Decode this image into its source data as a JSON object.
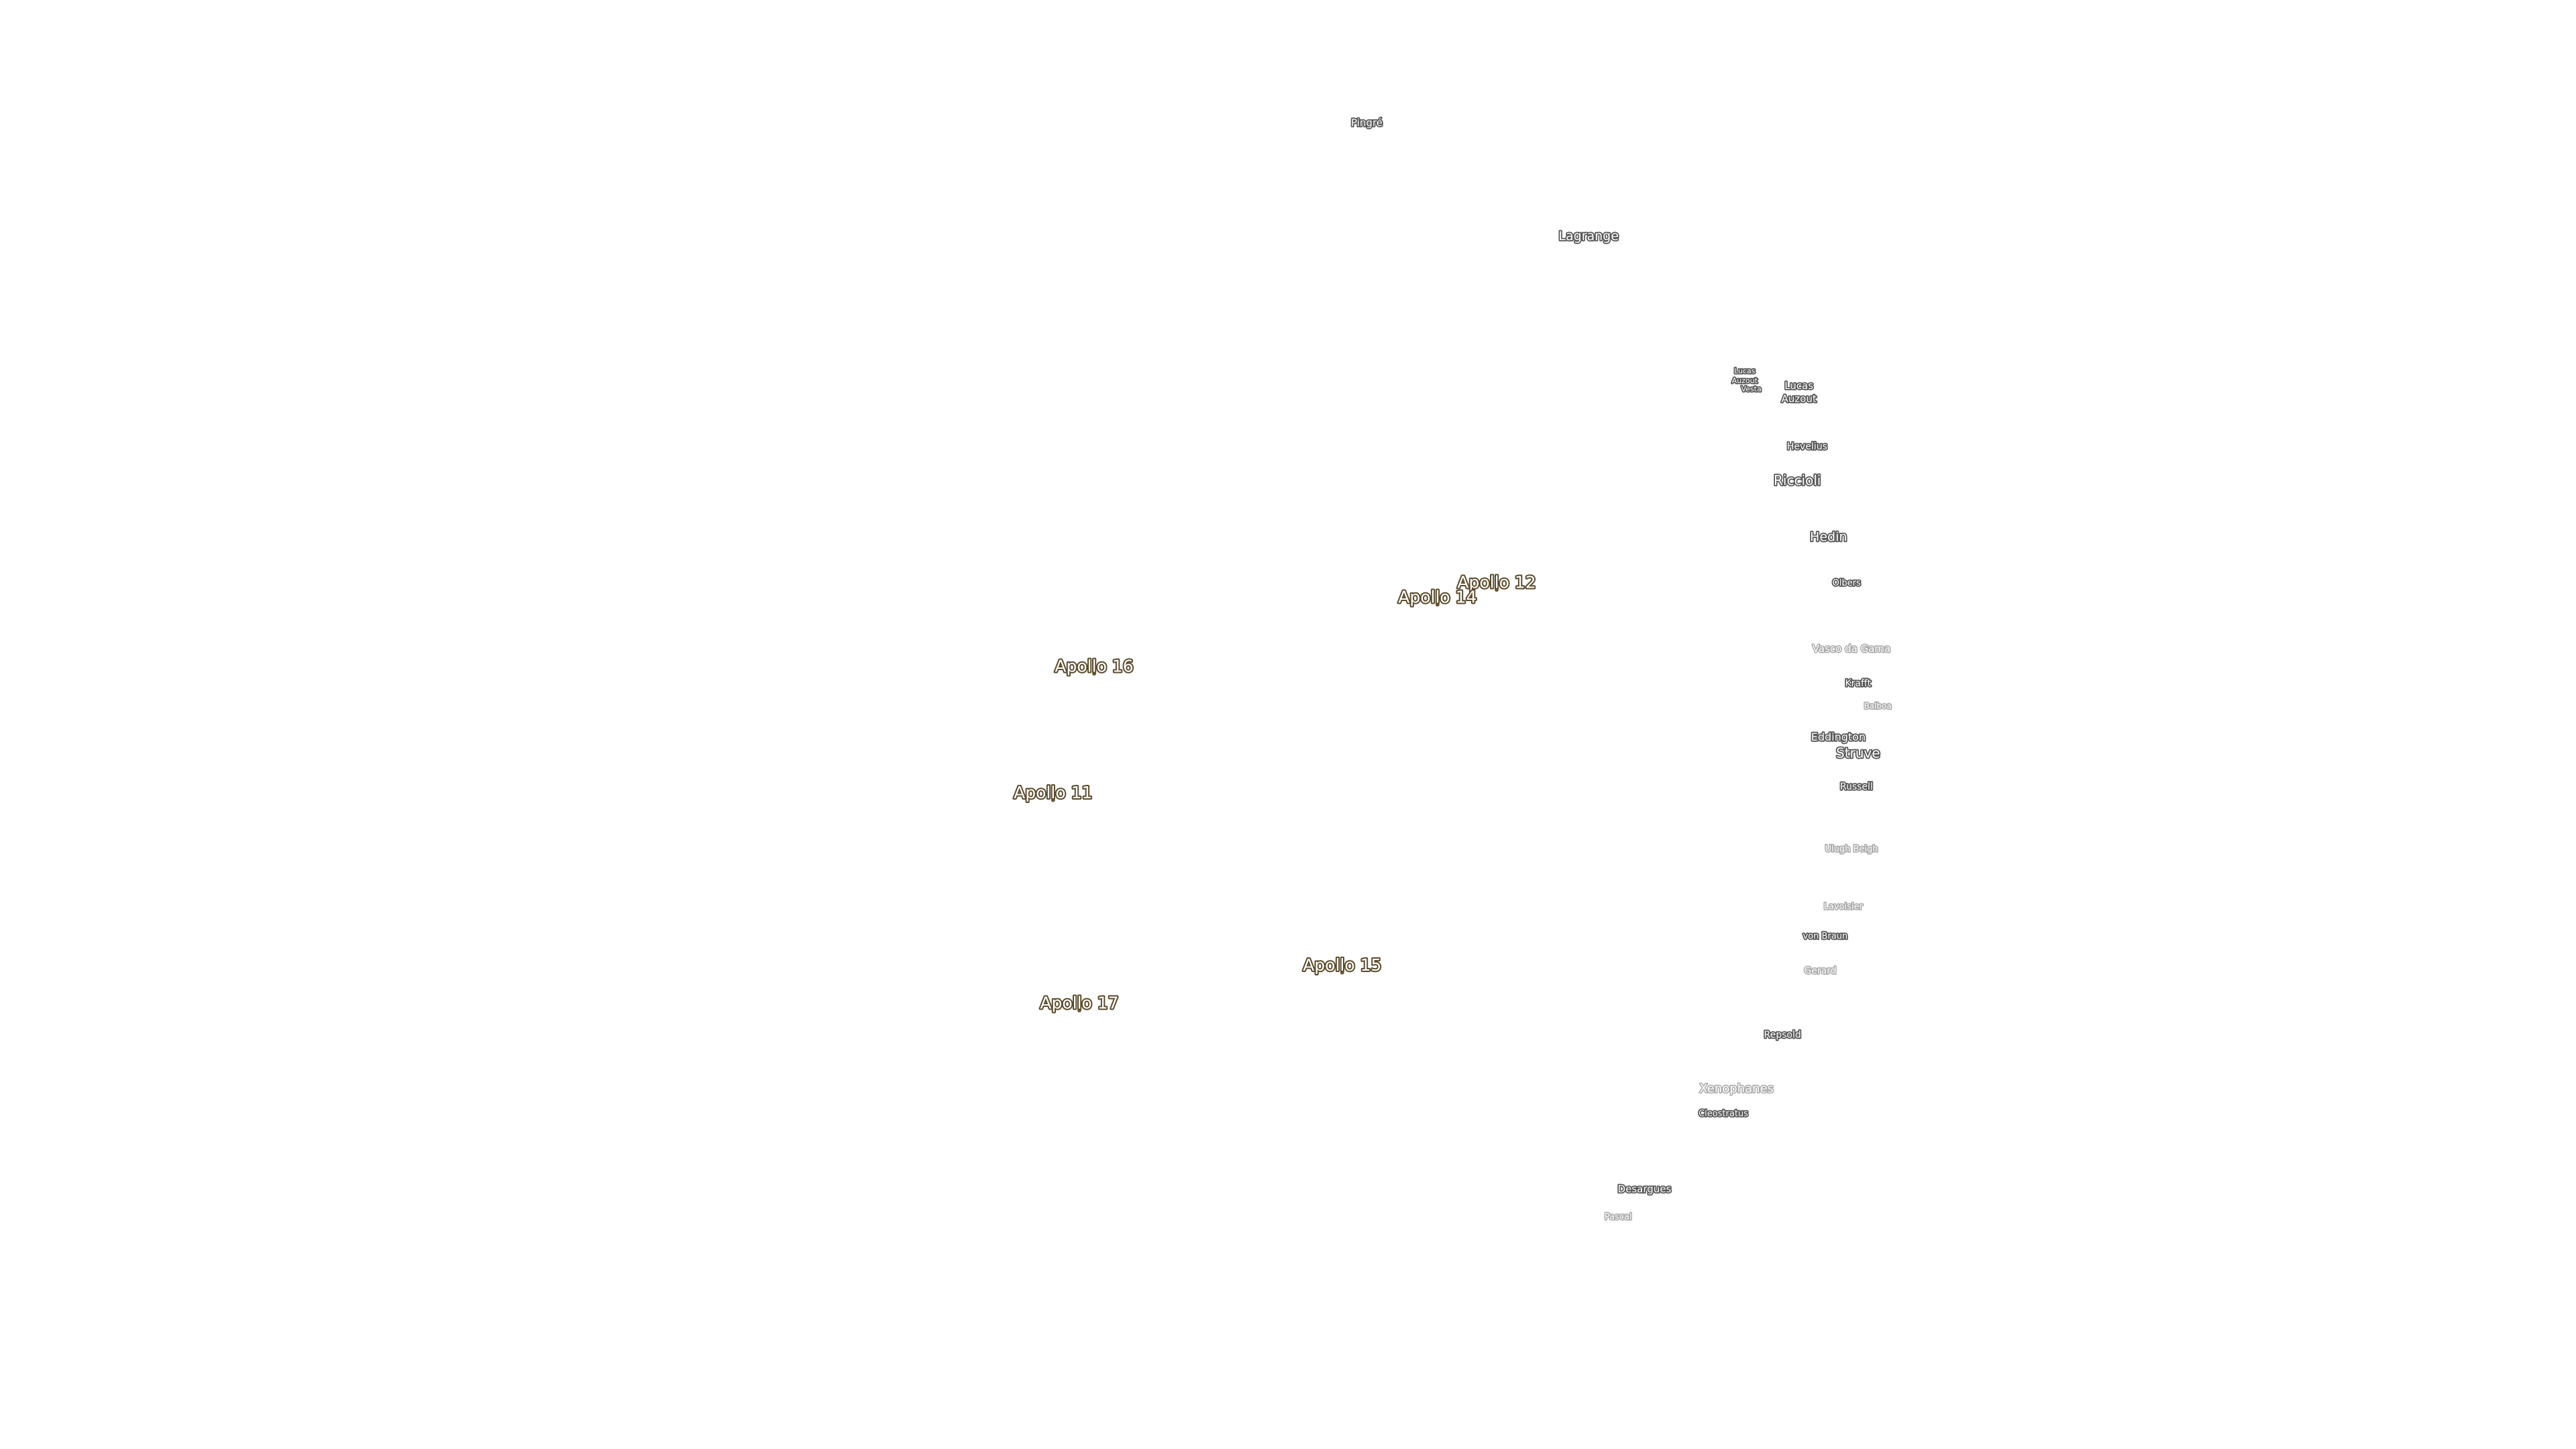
{
  "apollo_sites": [
    "Apollo 12",
    "Apollo 14",
    "Apollo 16",
    "Apollo 11",
    "Apollo 15",
    "Apollo 17"
  ],
  "features": [
    "Pingré",
    "Lagrange",
    "Lucas",
    "Auzout",
    "Vesta",
    "Lucas",
    "Auzout",
    "Hevelius",
    "Riccioli",
    "Hedin",
    "Olbers",
    "Vasco da Gama",
    "Krafft",
    "Balboa",
    "Eddington",
    "Struve",
    "Russell",
    "Ulugh Beigh",
    "Lavoisier",
    "von Braun",
    "Gerard",
    "Repsold",
    "Xenophanes",
    "Cleostratus",
    "Desargues",
    "Pascal"
  ]
}
